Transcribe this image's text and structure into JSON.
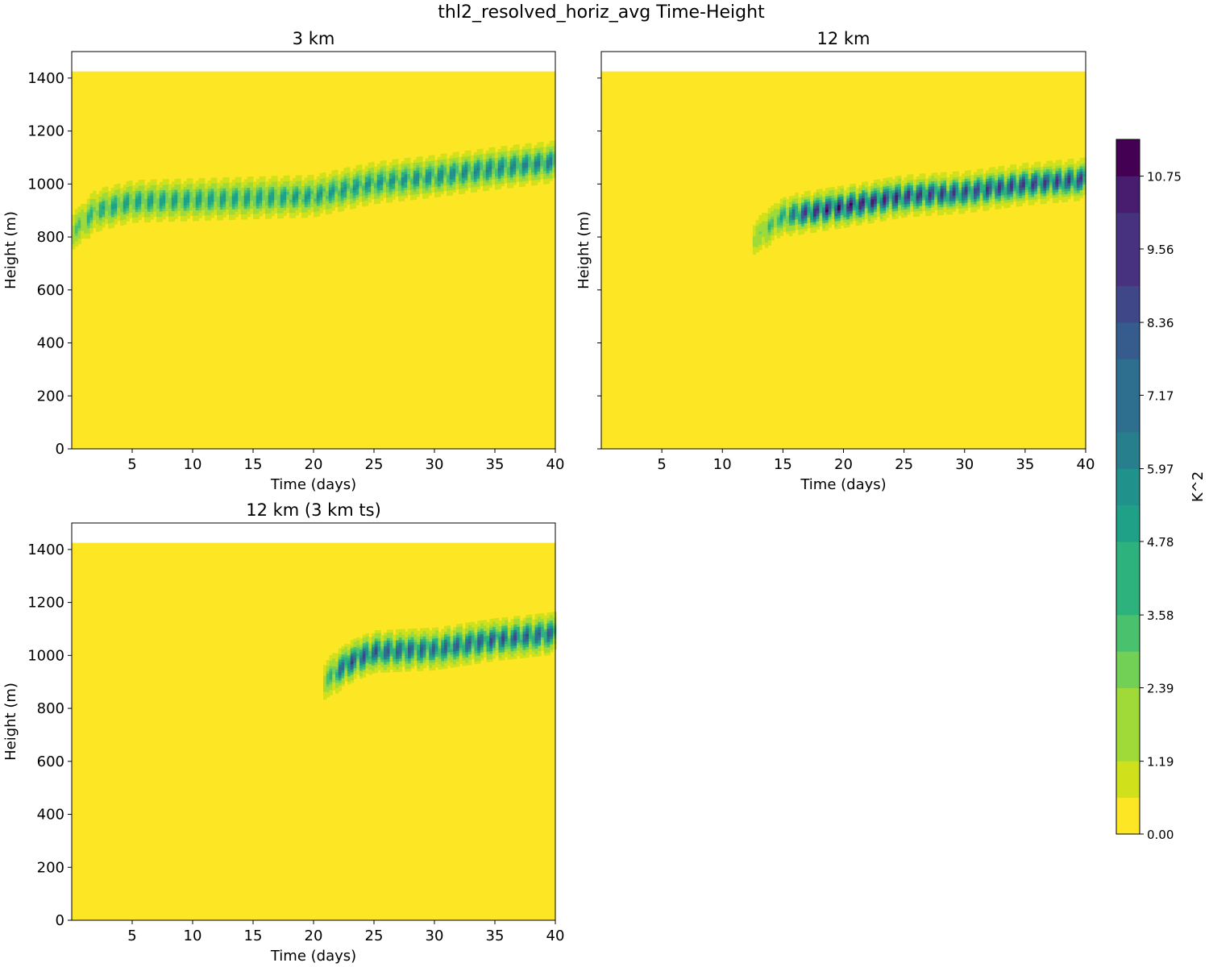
{
  "figure_title": "thl2_resolved_horiz_avg Time-Height",
  "colors": {
    "viridis": [
      "#fde725",
      "#d0e11c",
      "#a0da39",
      "#73d056",
      "#4ac16d",
      "#2db27d",
      "#1fa187",
      "#21918c",
      "#277f8e",
      "#2e6e8e",
      "#365c8d",
      "#3f4788",
      "#46327e",
      "#481d6f",
      "#440154"
    ],
    "axis": "#000000",
    "background": "#ffffff"
  },
  "colorbar": {
    "label": "K^2",
    "vmin": 0.0,
    "vmax": 11.35,
    "n_levels": 19,
    "tick_labels": [
      "0.00",
      "1.19",
      "2.39",
      "3.58",
      "4.78",
      "5.97",
      "7.17",
      "8.36",
      "9.56",
      "10.75"
    ]
  },
  "chart_data": [
    {
      "type": "heatmap",
      "id": "panel-3km",
      "title": "3 km",
      "xlabel": "Time (days)",
      "ylabel": "Height (m)",
      "xlim": [
        0,
        40
      ],
      "ylim": [
        0,
        1500
      ],
      "data_top": 1425,
      "xticks": [
        "5",
        "10",
        "15",
        "20",
        "25",
        "30",
        "35",
        "40"
      ],
      "yticks": [
        "0",
        "200",
        "400",
        "600",
        "800",
        "1000",
        "1200",
        "1400"
      ],
      "show_ytick_labels": true,
      "show_xtick_labels": true,
      "layer": {
        "t_start": 0.0,
        "t_end": 40,
        "center_height": [
          [
            0,
            820
          ],
          [
            2,
            900
          ],
          [
            5,
            935
          ],
          [
            20,
            955
          ],
          [
            25,
            1005
          ],
          [
            30,
            1030
          ],
          [
            35,
            1060
          ],
          [
            40,
            1085
          ]
        ],
        "half_thickness": 75,
        "peak_value": [
          [
            0,
            2.5
          ],
          [
            3,
            4.8
          ],
          [
            20,
            5.2
          ],
          [
            30,
            5.7
          ],
          [
            40,
            6.3
          ]
        ],
        "oscillations": 40
      }
    },
    {
      "type": "heatmap",
      "id": "panel-12km",
      "title": "12 km",
      "xlabel": "Time (days)",
      "ylabel": "Height (m)",
      "xlim": [
        0,
        40
      ],
      "ylim": [
        0,
        1500
      ],
      "data_top": 1425,
      "xticks": [
        "5",
        "10",
        "15",
        "20",
        "25",
        "30",
        "35",
        "40"
      ],
      "yticks": [
        "0",
        "200",
        "400",
        "600",
        "800",
        "1000",
        "1200",
        "1400"
      ],
      "show_ytick_labels": false,
      "show_xtick_labels": true,
      "layer": {
        "t_start": 12.5,
        "t_end": 40,
        "center_height": [
          [
            12.5,
            790
          ],
          [
            15,
            880
          ],
          [
            20,
            915
          ],
          [
            25,
            955
          ],
          [
            30,
            970
          ],
          [
            35,
            1000
          ],
          [
            40,
            1020
          ]
        ],
        "half_thickness": 70,
        "peak_value": [
          [
            12.5,
            1.2
          ],
          [
            15,
            4.5
          ],
          [
            17,
            9.8
          ],
          [
            20,
            10.8
          ],
          [
            25,
            9.8
          ],
          [
            30,
            9.0
          ],
          [
            35,
            9.4
          ],
          [
            40,
            9.0
          ]
        ],
        "oscillations": 29
      }
    },
    {
      "type": "heatmap",
      "id": "panel-12km-3kmts",
      "title": "12 km (3 km ts)",
      "xlabel": "Time (days)",
      "ylabel": "Height (m)",
      "xlim": [
        0,
        40
      ],
      "ylim": [
        0,
        1500
      ],
      "data_top": 1425,
      "xticks": [
        "5",
        "10",
        "15",
        "20",
        "25",
        "30",
        "35",
        "40"
      ],
      "yticks": [
        "0",
        "200",
        "400",
        "600",
        "800",
        "1000",
        "1200",
        "1400"
      ],
      "show_ytick_labels": true,
      "show_xtick_labels": true,
      "layer": {
        "t_start": 20.8,
        "t_end": 40,
        "center_height": [
          [
            20.8,
            900
          ],
          [
            23,
            975
          ],
          [
            25,
            1015
          ],
          [
            30,
            1025
          ],
          [
            35,
            1060
          ],
          [
            40,
            1085
          ]
        ],
        "half_thickness": 75,
        "peak_value": [
          [
            20.8,
            1.5
          ],
          [
            22.5,
            8.5
          ],
          [
            25,
            8.2
          ],
          [
            30,
            7.4
          ],
          [
            35,
            8.2
          ],
          [
            40,
            7.8
          ]
        ],
        "oscillations": 20
      }
    }
  ]
}
